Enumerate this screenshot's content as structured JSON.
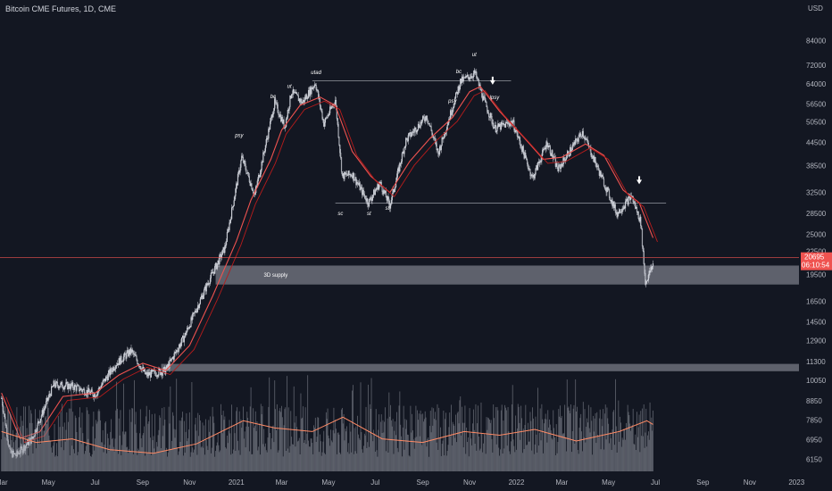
{
  "header": {
    "title": "Bitcoin CME Futures, 1D, CME"
  },
  "colors": {
    "background": "#131722",
    "candle_up": "#d1d4dc",
    "candle_down": "#d1d4dc",
    "ma_fast": "#ef5350",
    "ma_slow": "#e57373",
    "volume": "#9598a1",
    "volume_ma": "#ff8a65",
    "zone": "#787b86",
    "price_line": "#ef5350",
    "price_box": "#ef5350"
  },
  "chart_data": {
    "type": "candlestick",
    "title": "Bitcoin CME Futures, 1D, CME",
    "currency": "USD",
    "y_scale": "log",
    "ylim": [
      5700,
      100000
    ],
    "y_ticks": [
      "84000",
      "72000",
      "64000",
      "56500",
      "50500",
      "44500",
      "38500",
      "32500",
      "28500",
      "25000",
      "22500",
      "19500",
      "16500",
      "14500",
      "12900",
      "11300",
      "10050",
      "8850",
      "7850",
      "6950",
      "6150"
    ],
    "x_ticks": [
      "Mar",
      "May",
      "Jul",
      "Sep",
      "Nov",
      "2021",
      "Mar",
      "May",
      "Jul",
      "Sep",
      "Nov",
      "2022",
      "Mar",
      "May",
      "Jul",
      "Sep",
      "Nov",
      "2023"
    ],
    "x_tick_dates": [
      "2020-03-01",
      "2020-05-01",
      "2020-07-01",
      "2020-09-01",
      "2020-11-01",
      "2021-01-01",
      "2021-03-01",
      "2021-05-01",
      "2021-07-01",
      "2021-09-01",
      "2021-11-01",
      "2022-01-01",
      "2022-03-01",
      "2022-05-01",
      "2022-07-01",
      "2022-09-01",
      "2022-11-01",
      "2023-01-01"
    ],
    "last_price": "20695",
    "countdown": "06:10:54",
    "series": [
      {
        "name": "",
        "kind": "close",
        "points": [
          [
            "2020-03-01",
            9000
          ],
          [
            "2020-03-12",
            6400
          ],
          [
            "2020-03-20",
            6300
          ],
          [
            "2020-04-10",
            7000
          ],
          [
            "2020-05-08",
            9800
          ],
          [
            "2020-06-01",
            9700
          ],
          [
            "2020-07-01",
            9200
          ],
          [
            "2020-07-27",
            11100
          ],
          [
            "2020-08-17",
            12100
          ],
          [
            "2020-09-05",
            10400
          ],
          [
            "2020-10-01",
            10700
          ],
          [
            "2020-10-25",
            13200
          ],
          [
            "2020-11-25",
            18500
          ],
          [
            "2020-12-17",
            23000
          ],
          [
            "2021-01-08",
            40500
          ],
          [
            "2021-01-25",
            32000
          ],
          [
            "2021-02-20",
            57000
          ],
          [
            "2021-03-05",
            49000
          ],
          [
            "2021-03-14",
            61000
          ],
          [
            "2021-03-28",
            57000
          ],
          [
            "2021-04-14",
            64500
          ],
          [
            "2021-04-25",
            50000
          ],
          [
            "2021-05-10",
            58000
          ],
          [
            "2021-05-19",
            36000
          ],
          [
            "2021-06-01",
            36500
          ],
          [
            "2021-06-22",
            30500
          ],
          [
            "2021-07-07",
            34500
          ],
          [
            "2021-07-20",
            30000
          ],
          [
            "2021-08-10",
            45000
          ],
          [
            "2021-09-06",
            52500
          ],
          [
            "2021-09-21",
            41500
          ],
          [
            "2021-10-20",
            65000
          ],
          [
            "2021-11-08",
            68500
          ],
          [
            "2021-11-20",
            57500
          ],
          [
            "2021-12-04",
            48500
          ],
          [
            "2021-12-27",
            50500
          ],
          [
            "2022-01-22",
            35500
          ],
          [
            "2022-02-10",
            44500
          ],
          [
            "2022-02-24",
            37500
          ],
          [
            "2022-03-28",
            47500
          ],
          [
            "2022-04-12",
            40000
          ],
          [
            "2022-05-12",
            28500
          ],
          [
            "2022-05-31",
            31800
          ],
          [
            "2022-06-12",
            27000
          ],
          [
            "2022-06-18",
            18500
          ],
          [
            "2022-06-28",
            20695
          ]
        ]
      },
      {
        "name": "",
        "kind": "ma",
        "points": [
          [
            "2020-03-01",
            9300
          ],
          [
            "2020-03-25",
            7000
          ],
          [
            "2020-04-20",
            7300
          ],
          [
            "2020-05-20",
            9100
          ],
          [
            "2020-07-01",
            9300
          ],
          [
            "2020-08-01",
            10400
          ],
          [
            "2020-09-01",
            11200
          ],
          [
            "2020-10-01",
            10700
          ],
          [
            "2020-11-01",
            12500
          ],
          [
            "2020-12-01",
            17000
          ],
          [
            "2021-01-01",
            24000
          ],
          [
            "2021-01-20",
            31000
          ],
          [
            "2021-02-15",
            40000
          ],
          [
            "2021-03-01",
            48000
          ],
          [
            "2021-03-25",
            56000
          ],
          [
            "2021-04-20",
            59000
          ],
          [
            "2021-05-10",
            56000
          ],
          [
            "2021-06-01",
            42000
          ],
          [
            "2021-06-25",
            36000
          ],
          [
            "2021-07-20",
            32500
          ],
          [
            "2021-08-15",
            39500
          ],
          [
            "2021-09-10",
            45500
          ],
          [
            "2021-10-10",
            52000
          ],
          [
            "2021-11-01",
            61000
          ],
          [
            "2021-11-15",
            63000
          ],
          [
            "2021-12-10",
            54000
          ],
          [
            "2022-01-10",
            46000
          ],
          [
            "2022-02-05",
            40000
          ],
          [
            "2022-03-01",
            40500
          ],
          [
            "2022-04-01",
            44000
          ],
          [
            "2022-04-25",
            41000
          ],
          [
            "2022-05-20",
            33000
          ],
          [
            "2022-06-10",
            30500
          ],
          [
            "2022-06-28",
            24500
          ]
        ]
      },
      {
        "name": "",
        "kind": "volume_ma",
        "points": [
          [
            "2020-03-01",
            0.55
          ],
          [
            "2020-04-15",
            0.4
          ],
          [
            "2020-06-01",
            0.45
          ],
          [
            "2020-07-20",
            0.3
          ],
          [
            "2020-09-15",
            0.25
          ],
          [
            "2020-11-10",
            0.38
          ],
          [
            "2021-01-10",
            0.7
          ],
          [
            "2021-02-20",
            0.6
          ],
          [
            "2021-04-10",
            0.55
          ],
          [
            "2021-05-20",
            0.75
          ],
          [
            "2021-07-10",
            0.45
          ],
          [
            "2021-09-01",
            0.4
          ],
          [
            "2021-10-25",
            0.55
          ],
          [
            "2021-12-10",
            0.5
          ],
          [
            "2022-01-25",
            0.58
          ],
          [
            "2022-03-20",
            0.42
          ],
          [
            "2022-05-15",
            0.55
          ],
          [
            "2022-06-20",
            0.7
          ],
          [
            "2022-06-28",
            0.65
          ]
        ]
      }
    ],
    "annotations": [
      {
        "label": "psy",
        "date": "2021-01-05",
        "price": 46000
      },
      {
        "label": "bc",
        "date": "2021-02-20",
        "price": 58500
      },
      {
        "label": "ut",
        "date": "2021-03-14",
        "price": 62500
      },
      {
        "label": "utad",
        "date": "2021-04-14",
        "price": 68000
      },
      {
        "label": "sc",
        "date": "2021-05-19",
        "price": 28200
      },
      {
        "label": "st",
        "date": "2021-06-26",
        "price": 28200
      },
      {
        "label": "st",
        "date": "2021-07-20",
        "price": 29200
      },
      {
        "label": "psy",
        "date": "2021-10-10",
        "price": 57000
      },
      {
        "label": "bc",
        "date": "2021-10-20",
        "price": 68500
      },
      {
        "label": "ut",
        "date": "2021-11-10",
        "price": 76000
      },
      {
        "label": "lpsy",
        "date": "2021-12-03",
        "price": 58200
      }
    ],
    "zones": [
      {
        "label": "3D supply",
        "from_date": "2020-12-05",
        "to_date": "2023-01-10",
        "low": 18300,
        "high": 20600
      },
      {
        "label": "",
        "from_date": "2020-09-25",
        "to_date": "2023-01-10",
        "low": 10650,
        "high": 11150
      }
    ],
    "levels": [
      {
        "price": 65300,
        "from_date": "2021-04-10",
        "to_date": "2021-12-25"
      },
      {
        "price": 30400,
        "from_date": "2021-05-10",
        "to_date": "2022-07-15"
      }
    ]
  }
}
